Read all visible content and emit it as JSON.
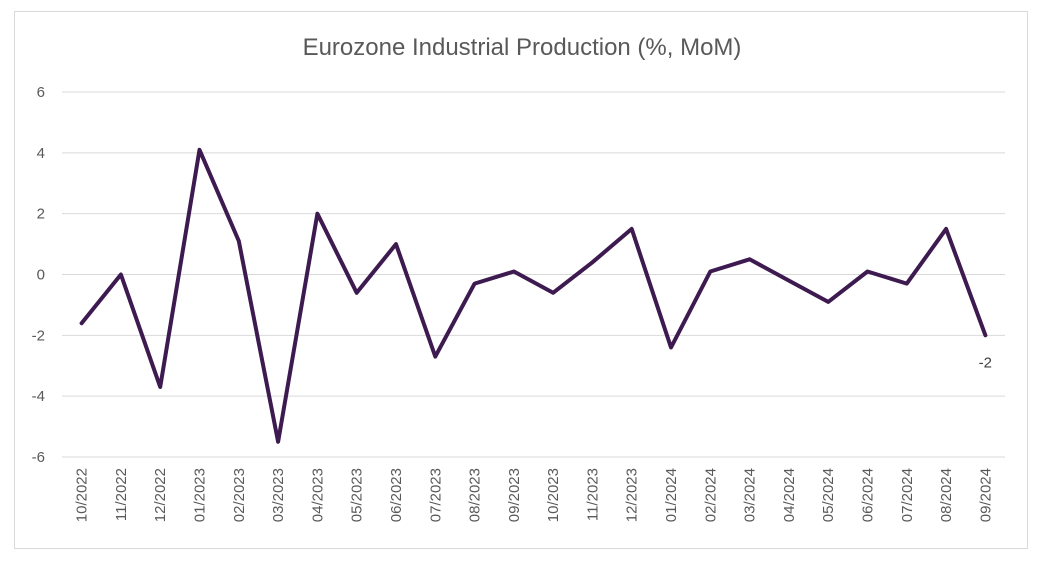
{
  "chart_data": {
    "type": "line",
    "title": "Eurozone Industrial Production (%, MoM)",
    "xlabel": "",
    "ylabel": "",
    "categories": [
      "10/2022",
      "11/2022",
      "12/2022",
      "01/2023",
      "02/2023",
      "03/2023",
      "04/2023",
      "05/2023",
      "06/2023",
      "07/2023",
      "08/2023",
      "09/2023",
      "10/2023",
      "11/2023",
      "12/2023",
      "01/2024",
      "02/2024",
      "03/2024",
      "04/2024",
      "05/2024",
      "06/2024",
      "07/2024",
      "08/2024",
      "09/2024"
    ],
    "series": [
      {
        "values": [
          -1.6,
          0.0,
          -3.7,
          4.1,
          1.1,
          -5.5,
          2.0,
          -0.6,
          1.0,
          -2.7,
          -0.3,
          0.1,
          -0.6,
          0.4,
          1.5,
          -2.4,
          0.1,
          0.5,
          -0.2,
          -0.9,
          0.1,
          -0.3,
          1.5,
          -2.0
        ],
        "color": "#3d1a4f"
      }
    ],
    "ylim": [
      -6,
      6
    ],
    "yticks": [
      -6,
      -4,
      -2,
      0,
      2,
      4,
      6
    ],
    "grid": true,
    "legend": "none",
    "data_labels": [
      {
        "index": 23,
        "text": "-2"
      }
    ],
    "colors": {
      "line": "#3d1a4f",
      "grid": "#d9d9d9",
      "text": "#595959"
    }
  }
}
